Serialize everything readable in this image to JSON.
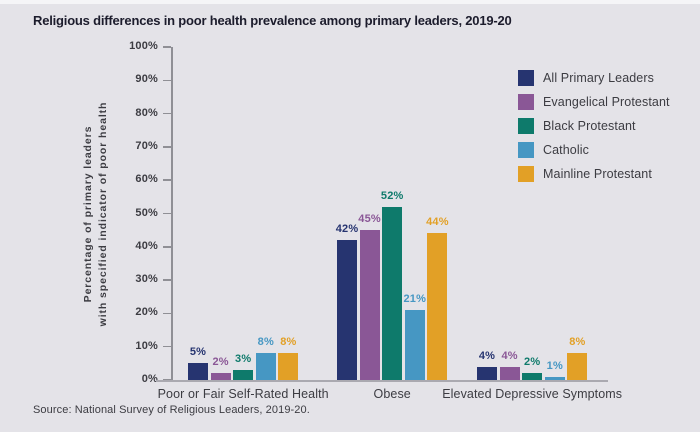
{
  "title": "Religious differences in poor health prevalence among primary leaders, 2019-20",
  "source": "Source: National Survey of Religious Leaders, 2019-20.",
  "y_axis_title_line1": "Percentage of primary leaders",
  "y_axis_title_line2": "with specified indicator of poor health",
  "colors": {
    "background": "#e4e3e8",
    "axis": "#8f8f95",
    "baseline": "#aaa9b0",
    "text": "#3c3c42",
    "title_text": "#1c1c2c"
  },
  "chart_data": {
    "type": "bar",
    "title": "Religious differences in poor health prevalence among primary leaders, 2019-20",
    "xlabel": "",
    "ylabel": "Percentage of primary leaders with specified indicator of poor health",
    "categories": [
      "Poor or Fair Self-Rated Health",
      "Obese",
      "Elevated Depressive Symptoms"
    ],
    "series": [
      {
        "name": "All Primary Leaders",
        "color": "#263470",
        "values": [
          5,
          42,
          4
        ]
      },
      {
        "name": "Evangelical Protestant",
        "color": "#8a5796",
        "values": [
          2,
          45,
          4
        ]
      },
      {
        "name": "Black Protestant",
        "color": "#0e7a6b",
        "values": [
          3,
          52,
          2
        ]
      },
      {
        "name": "Catholic",
        "color": "#4697c3",
        "values": [
          8,
          21,
          1
        ]
      },
      {
        "name": "Mainline Protestant",
        "color": "#e2a026",
        "values": [
          8,
          44,
          8
        ]
      }
    ],
    "value_suffix": "%",
    "y_ticks": [
      "0%",
      "10%",
      "20%",
      "30%",
      "40%",
      "50%",
      "60%",
      "70%",
      "80%",
      "90%",
      "100%"
    ],
    "ylim": [
      0,
      100
    ],
    "grid": false,
    "legend_position": "top-right",
    "data_labels": true
  }
}
